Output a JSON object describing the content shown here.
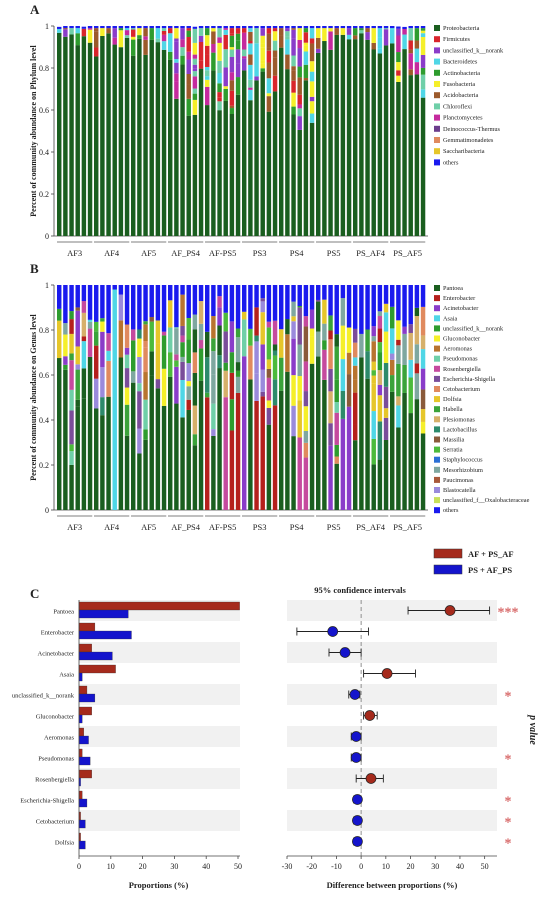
{
  "figure": {
    "panel_labels": [
      "A",
      "B",
      "C"
    ]
  },
  "chart_data": [
    {
      "panel": "A",
      "type": "bar",
      "stacked": true,
      "ylabel": "Percent of community abundance on Phylum level",
      "ylim": [
        0,
        1
      ],
      "yticks": [
        "0",
        "0.2",
        "0.4",
        "0.6",
        "0.8",
        "1"
      ],
      "groups": [
        "AF3",
        "AF4",
        "AF5",
        "AF_PS4",
        "AF-PS5",
        "PS3",
        "PS4",
        "PS5",
        "PS_AF4",
        "PS_AF5"
      ],
      "bars_per_group": 6,
      "legend_position": "right",
      "series": [
        {
          "name": "Proteobacteria",
          "color": "#1a5e1f"
        },
        {
          "name": "Firmicutes",
          "color": "#d9252c"
        },
        {
          "name": "unclassified_k__norank",
          "color": "#8a3cc9"
        },
        {
          "name": "Bacteroidetes",
          "color": "#4fd6e6"
        },
        {
          "name": "Actinobacteria",
          "color": "#2e9c2e"
        },
        {
          "name": "Fusobacteria",
          "color": "#f5ef2a"
        },
        {
          "name": "Acidobacteria",
          "color": "#9c5a2b"
        },
        {
          "name": "Chloroflexi",
          "color": "#6fcfa8"
        },
        {
          "name": "Planctomycetes",
          "color": "#c52a9e"
        },
        {
          "name": "Deinococcus-Thermus",
          "color": "#6c3d8c"
        },
        {
          "name": "Gemmatimonadetes",
          "color": "#e08a5e"
        },
        {
          "name": "Saccharibacteria",
          "color": "#e6c62a"
        },
        {
          "name": "others",
          "color": "#1a1aee"
        }
      ]
    },
    {
      "panel": "B",
      "type": "bar",
      "stacked": true,
      "ylabel": "Percent of community abundance on Genus level",
      "ylim": [
        0,
        1
      ],
      "yticks": [
        "0",
        "0.2",
        "0.4",
        "0.6",
        "0.8",
        "1"
      ],
      "groups": [
        "AF3",
        "AF4",
        "AF5",
        "AF_PS4",
        "AF-PS5",
        "PS3",
        "PS4",
        "PS5",
        "PS_AF4",
        "PS_AF5"
      ],
      "bars_per_group": 6,
      "legend_position": "right",
      "series": [
        {
          "name": "Pantoea",
          "color": "#1a5e1f"
        },
        {
          "name": "Enterobacter",
          "color": "#b5201c"
        },
        {
          "name": "Acinetobacter",
          "color": "#8a3cc9"
        },
        {
          "name": "Asaia",
          "color": "#4fd6e6"
        },
        {
          "name": "unclassified_k__norank",
          "color": "#2e9c2e"
        },
        {
          "name": "Gluconobacter",
          "color": "#f5ef2a"
        },
        {
          "name": "Aeromonas",
          "color": "#b8742f"
        },
        {
          "name": "Pseudomonas",
          "color": "#6fcfa8"
        },
        {
          "name": "Rosenbergiella",
          "color": "#c54a9e"
        },
        {
          "name": "Escherichia-Shigella",
          "color": "#7a4d9a"
        },
        {
          "name": "Cetobacterium",
          "color": "#e08a5e"
        },
        {
          "name": "Dolfsia",
          "color": "#e6c62a"
        },
        {
          "name": "Habella",
          "color": "#3aa33a"
        },
        {
          "name": "Plesiomonas",
          "color": "#d6b06a"
        },
        {
          "name": "Lactobacillus",
          "color": "#2d8a6b"
        },
        {
          "name": "Massilia",
          "color": "#8a5a3a"
        },
        {
          "name": "Serratia",
          "color": "#4cba3c"
        },
        {
          "name": "Staphylococcus",
          "color": "#2a6fd6"
        },
        {
          "name": "Mesorhizobium",
          "color": "#7fa7a0"
        },
        {
          "name": "Paucimonas",
          "color": "#a8583a"
        },
        {
          "name": "Blastocatella",
          "color": "#9a8adc"
        },
        {
          "name": "unclassified_f__Oxalobacteraceae",
          "color": "#c8e05a"
        },
        {
          "name": "others",
          "color": "#1a1aee"
        }
      ]
    },
    {
      "panel": "C-left",
      "type": "bar",
      "orientation": "horizontal",
      "xlabel": "Proportions (%)",
      "xlim": [
        0,
        50
      ],
      "xticks": [
        "0",
        "10",
        "20",
        "30",
        "40",
        "50"
      ],
      "categories": [
        "Pantoea",
        "Enterobacter",
        "Acinetobacter",
        "Asaia",
        "unclassified_k__norank",
        "Gluconobacter",
        "Aeromonas",
        "Pseudomonas",
        "Rosenbergiella",
        "Escherichia-Shigella",
        "Cetobacterium",
        "Dolfsia"
      ],
      "series": [
        {
          "name": "AF + PS_AF",
          "color": "#a52a1c",
          "values": [
            50.5,
            5,
            4,
            11.5,
            2.5,
            4,
            1.5,
            1,
            4,
            1,
            0.5,
            0.5
          ]
        },
        {
          "name": "PS + AF_PS",
          "color": "#1414cc",
          "values": [
            15.5,
            16.5,
            10.5,
            1,
            5,
            1,
            3,
            3.5,
            0.5,
            2.5,
            2,
            2
          ]
        }
      ]
    },
    {
      "panel": "C-right",
      "type": "scatter",
      "title": "95% confidence intervals",
      "xlabel": "Difference between proportions (%)",
      "xlim": [
        -30,
        55
      ],
      "xticks": [
        "-30",
        "-20",
        "-10",
        "0",
        "10",
        "20",
        "30",
        "40",
        "50"
      ],
      "categories": [
        "Pantoea",
        "Enterobacter",
        "Acinetobacter",
        "Asaia",
        "unclassified_k__norank",
        "Gluconobacter",
        "Aeromonas",
        "Pseudomonas",
        "Rosenbergiella",
        "Escherichia-Shigella",
        "Cetobacterium",
        "Dolfsia"
      ],
      "diff": [
        36,
        -11.5,
        -6.5,
        10.5,
        -2.5,
        3.5,
        -2,
        -2,
        4,
        -1.5,
        -1.5,
        -1.5
      ],
      "ci_low": [
        19,
        -26,
        -13,
        1,
        -5,
        1,
        -4,
        -4,
        -2,
        -3,
        -3,
        -3
      ],
      "ci_high": [
        52,
        3,
        0,
        22,
        -0.5,
        6.5,
        0,
        0,
        9,
        0,
        0,
        0
      ],
      "point_color": [
        "#a52a1c",
        "#1414cc",
        "#1414cc",
        "#a52a1c",
        "#1414cc",
        "#a52a1c",
        "#1414cc",
        "#1414cc",
        "#a52a1c",
        "#1414cc",
        "#1414cc",
        "#1414cc"
      ],
      "significance": [
        "***",
        "",
        "",
        "",
        "*",
        "",
        "",
        "*",
        "",
        "*",
        "*",
        "*"
      ],
      "significance_label": "p value",
      "legend": [
        {
          "name": "AF + PS_AF",
          "color": "#a52a1c"
        },
        {
          "name": "PS + AF_PS",
          "color": "#1414cc"
        }
      ]
    }
  ]
}
